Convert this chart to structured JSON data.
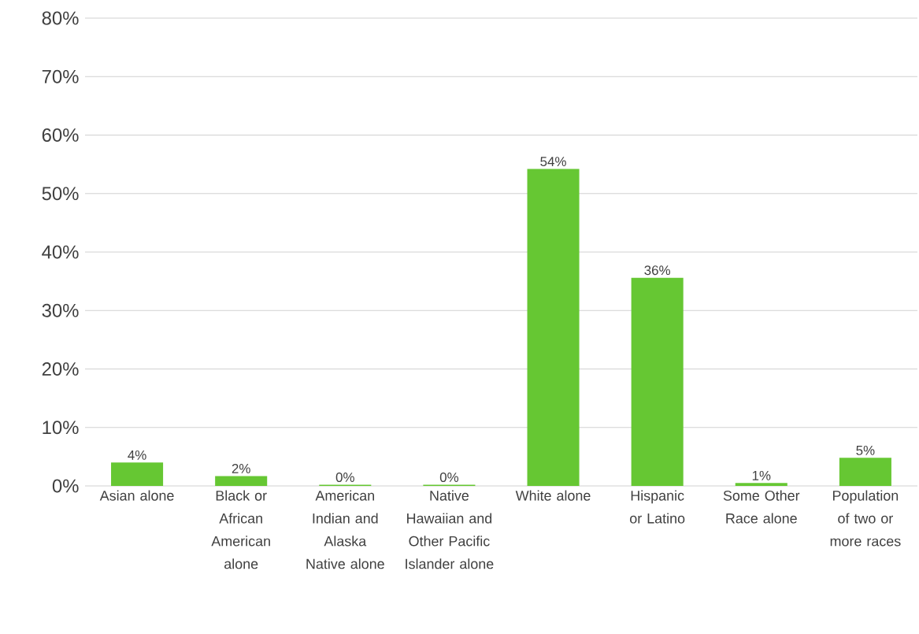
{
  "chart_data": {
    "type": "bar",
    "categories": [
      "Asian alone",
      "Black or African American alone",
      "American Indian and Alaska Native alone",
      "Native Hawaiian and Other Pacific Islander alone",
      "White alone",
      "Hispanic or Latino",
      "Some Other Race alone",
      "Population of two or more races"
    ],
    "values": [
      4.0,
      1.7,
      0.2,
      0.2,
      54.2,
      35.6,
      0.5,
      4.8
    ],
    "value_labels": [
      "4%",
      "2%",
      "0%",
      "0%",
      "54%",
      "36%",
      "1%",
      "5%"
    ],
    "color": "#66c733",
    "ylim": [
      0,
      80
    ],
    "yticks": [
      {
        "value": 0,
        "label": "0%"
      },
      {
        "value": 10,
        "label": "10%"
      },
      {
        "value": 20,
        "label": "20%"
      },
      {
        "value": 30,
        "label": "30%"
      },
      {
        "value": 40,
        "label": "40%"
      },
      {
        "value": 50,
        "label": "50%"
      },
      {
        "value": 60,
        "label": "60%"
      },
      {
        "value": 70,
        "label": "70%"
      },
      {
        "value": 80,
        "label": "80%"
      }
    ],
    "grid": "y"
  }
}
